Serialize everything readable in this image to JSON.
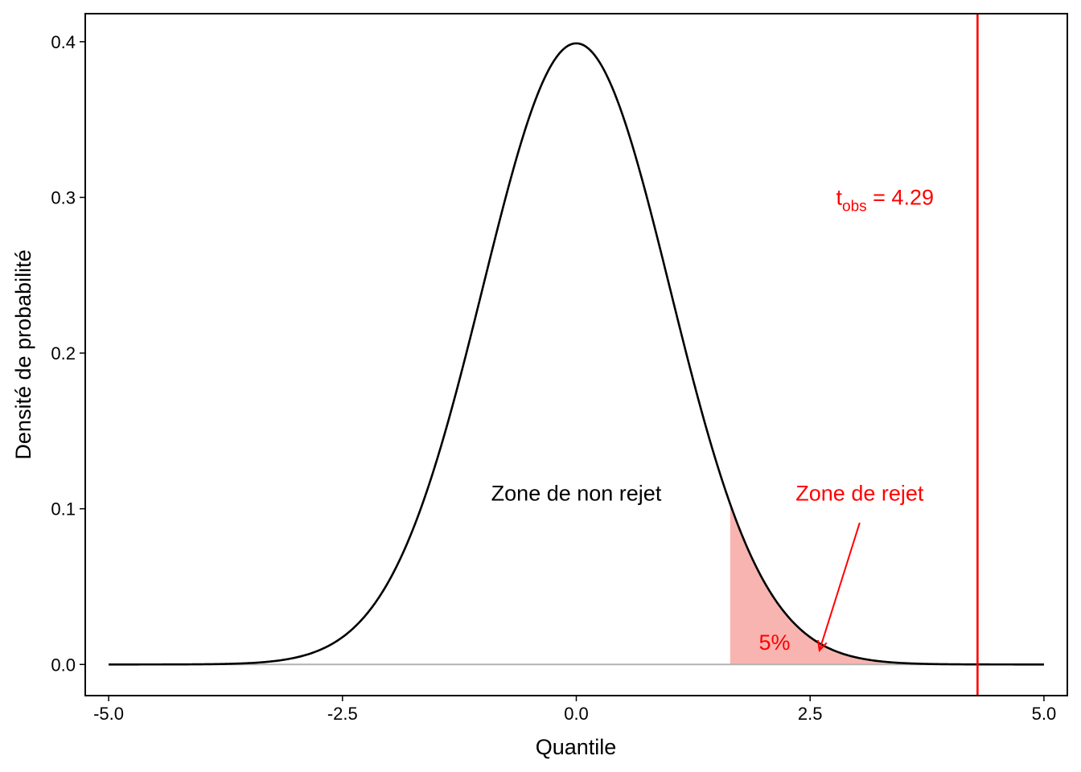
{
  "chart_data": {
    "type": "area",
    "title": "",
    "xlabel": "Quantile",
    "ylabel": "Densité de probabilité",
    "xlim": [
      -5.25,
      5.25
    ],
    "ylim": [
      -0.02,
      0.418
    ],
    "xticks": [
      -5.0,
      -2.5,
      0.0,
      2.5,
      5.0
    ],
    "xtick_labels": [
      "-5.0",
      "-2.5",
      "0.0",
      "2.5",
      "5.0"
    ],
    "yticks": [
      0.0,
      0.1,
      0.2,
      0.3,
      0.4
    ],
    "ytick_labels": [
      "0.0",
      "0.1",
      "0.2",
      "0.3",
      "0.4"
    ],
    "grid": false,
    "series": [
      {
        "distribution": "standard normal density",
        "x_range": [
          -5,
          5
        ],
        "x": [
          -5,
          -4,
          -3,
          -2.5,
          -2,
          -1.5,
          -1,
          -0.5,
          0,
          0.5,
          1,
          1.5,
          2,
          2.5,
          3,
          4,
          5
        ],
        "y": [
          1.5e-06,
          0.000134,
          0.00443,
          0.0175,
          0.054,
          0.1295,
          0.242,
          0.3521,
          0.3989,
          0.3521,
          0.242,
          0.1295,
          0.054,
          0.0175,
          0.00443,
          0.000134,
          1.5e-06
        ],
        "color": "#000000"
      }
    ],
    "shaded_region": {
      "x_from": 1.645,
      "x_to": 5,
      "color": "#F8B4B0",
      "label": "5%"
    },
    "baseline": {
      "y": 0,
      "color": "#B3B3B3"
    },
    "vline": {
      "x": 4.29,
      "color": "#FF0000"
    },
    "annotations": {
      "non_reject": {
        "text": "Zone de non rejet",
        "x": 0,
        "y": 0.11,
        "color": "#000000"
      },
      "reject": {
        "text": "Zone de rejet",
        "x": 3.03,
        "y": 0.11,
        "color": "#FF0000"
      },
      "pct": {
        "text": "5%",
        "x": 2.12,
        "y": 0.014,
        "color": "#FF0000"
      },
      "t_obs": {
        "base": "t",
        "sub": "obs",
        "rest": " = 4.29",
        "x": 3.3,
        "y": 0.3,
        "color": "#FF0000"
      },
      "arrow": {
        "from": [
          3.03,
          0.091
        ],
        "to": [
          2.6,
          0.009
        ],
        "color": "#FF0000"
      }
    }
  }
}
